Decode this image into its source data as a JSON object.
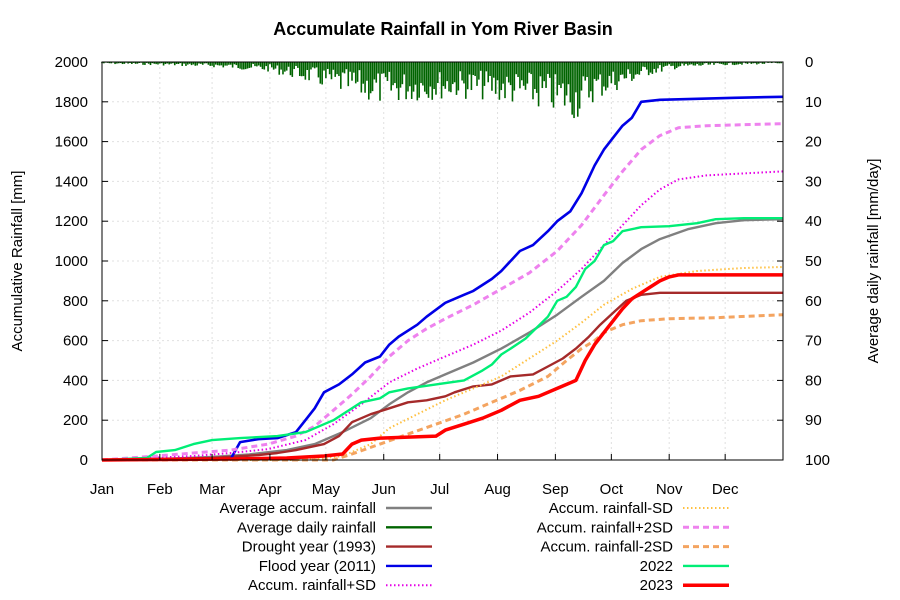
{
  "chart_data": {
    "type": "line",
    "title": "Accumulate Rainfall in Yom River Basin",
    "xlabel": "",
    "ylabel": "Accumulative Rainfall [mm]",
    "y2label": "Average daily rainfall [mm/day]",
    "xlim": [
      1,
      366
    ],
    "ylim": [
      0,
      2000
    ],
    "y2lim": [
      100,
      0
    ],
    "y2_inverted": true,
    "grid": true,
    "legend_position": "bottom, two columns",
    "x_tick_labels": [
      "Jan",
      "Feb",
      "Mar",
      "Apr",
      "May",
      "Jun",
      "Jul",
      "Aug",
      "Sep",
      "Oct",
      "Nov",
      "Dec"
    ],
    "x_tick_days": [
      1,
      32,
      60,
      91,
      121,
      152,
      182,
      213,
      244,
      274,
      305,
      335
    ],
    "y_ticks": [
      0,
      200,
      400,
      600,
      800,
      1000,
      1200,
      1400,
      1600,
      1800,
      2000
    ],
    "y2_ticks": [
      0,
      10,
      20,
      30,
      40,
      50,
      60,
      70,
      80,
      90,
      100
    ],
    "series": [
      {
        "name": "Average accum. rainfall",
        "color": "#808080",
        "style": "solid",
        "axis": "left",
        "points": [
          [
            1,
            0
          ],
          [
            40,
            8
          ],
          [
            60,
            15
          ],
          [
            80,
            28
          ],
          [
            100,
            50
          ],
          [
            115,
            80
          ],
          [
            130,
            140
          ],
          [
            145,
            210
          ],
          [
            155,
            280
          ],
          [
            165,
            340
          ],
          [
            175,
            390
          ],
          [
            185,
            430
          ],
          [
            200,
            490
          ],
          [
            215,
            560
          ],
          [
            230,
            640
          ],
          [
            245,
            730
          ],
          [
            258,
            820
          ],
          [
            270,
            900
          ],
          [
            280,
            990
          ],
          [
            290,
            1060
          ],
          [
            300,
            1110
          ],
          [
            315,
            1160
          ],
          [
            330,
            1190
          ],
          [
            345,
            1205
          ],
          [
            366,
            1210
          ]
        ]
      },
      {
        "name": "Average daily rainfall",
        "color": "#006400",
        "style": "bar",
        "axis": "right",
        "daily_profile": [
          [
            1,
            0.3
          ],
          [
            30,
            0.5
          ],
          [
            60,
            0.8
          ],
          [
            90,
            1.5
          ],
          [
            110,
            3
          ],
          [
            130,
            5
          ],
          [
            150,
            6.5
          ],
          [
            170,
            6
          ],
          [
            190,
            5.5
          ],
          [
            210,
            6
          ],
          [
            230,
            7
          ],
          [
            245,
            8
          ],
          [
            255,
            9
          ],
          [
            265,
            6
          ],
          [
            280,
            4
          ],
          [
            295,
            2
          ],
          [
            310,
            1
          ],
          [
            335,
            0.5
          ],
          [
            366,
            0.3
          ]
        ]
      },
      {
        "name": "Drought year (1993)",
        "color": "#a52a2a",
        "style": "solid",
        "axis": "left",
        "points": [
          [
            1,
            0
          ],
          [
            60,
            10
          ],
          [
            85,
            25
          ],
          [
            95,
            35
          ],
          [
            105,
            50
          ],
          [
            120,
            80
          ],
          [
            128,
            120
          ],
          [
            135,
            190
          ],
          [
            145,
            230
          ],
          [
            155,
            260
          ],
          [
            165,
            290
          ],
          [
            175,
            300
          ],
          [
            185,
            320
          ],
          [
            190,
            340
          ],
          [
            200,
            370
          ],
          [
            210,
            380
          ],
          [
            220,
            420
          ],
          [
            232,
            430
          ],
          [
            240,
            470
          ],
          [
            248,
            510
          ],
          [
            255,
            560
          ],
          [
            262,
            620
          ],
          [
            268,
            680
          ],
          [
            275,
            740
          ],
          [
            282,
            800
          ],
          [
            290,
            830
          ],
          [
            300,
            840
          ],
          [
            366,
            840
          ]
        ]
      },
      {
        "name": "Flood year (2011)",
        "color": "#0000e6",
        "style": "solid",
        "axis": "left",
        "points": [
          [
            1,
            0
          ],
          [
            70,
            5
          ],
          [
            75,
            90
          ],
          [
            85,
            105
          ],
          [
            95,
            110
          ],
          [
            105,
            140
          ],
          [
            110,
            200
          ],
          [
            115,
            260
          ],
          [
            120,
            340
          ],
          [
            128,
            380
          ],
          [
            135,
            430
          ],
          [
            142,
            490
          ],
          [
            150,
            520
          ],
          [
            155,
            580
          ],
          [
            160,
            620
          ],
          [
            170,
            680
          ],
          [
            175,
            720
          ],
          [
            185,
            790
          ],
          [
            195,
            830
          ],
          [
            200,
            850
          ],
          [
            205,
            880
          ],
          [
            210,
            910
          ],
          [
            215,
            950
          ],
          [
            220,
            1000
          ],
          [
            225,
            1050
          ],
          [
            232,
            1080
          ],
          [
            240,
            1150
          ],
          [
            245,
            1200
          ],
          [
            252,
            1250
          ],
          [
            258,
            1340
          ],
          [
            262,
            1420
          ],
          [
            265,
            1480
          ],
          [
            270,
            1560
          ],
          [
            275,
            1620
          ],
          [
            280,
            1680
          ],
          [
            285,
            1720
          ],
          [
            290,
            1800
          ],
          [
            300,
            1810
          ],
          [
            320,
            1815
          ],
          [
            340,
            1820
          ],
          [
            366,
            1825
          ]
        ]
      },
      {
        "name": "Accum. rainfall+SD",
        "color": "#e600e6",
        "style": "dotted",
        "axis": "left",
        "points": [
          [
            1,
            0
          ],
          [
            50,
            20
          ],
          [
            70,
            35
          ],
          [
            90,
            55
          ],
          [
            110,
            100
          ],
          [
            125,
            180
          ],
          [
            140,
            280
          ],
          [
            155,
            390
          ],
          [
            170,
            460
          ],
          [
            185,
            520
          ],
          [
            200,
            580
          ],
          [
            215,
            650
          ],
          [
            230,
            740
          ],
          [
            245,
            850
          ],
          [
            258,
            960
          ],
          [
            270,
            1080
          ],
          [
            280,
            1180
          ],
          [
            290,
            1280
          ],
          [
            300,
            1360
          ],
          [
            310,
            1410
          ],
          [
            325,
            1430
          ],
          [
            345,
            1440
          ],
          [
            366,
            1450
          ]
        ]
      },
      {
        "name": "Accum. rainfall-SD",
        "color": "#ffc040",
        "style": "dotted",
        "axis": "left",
        "points": [
          [
            1,
            0
          ],
          [
            110,
            0
          ],
          [
            130,
            20
          ],
          [
            145,
            80
          ],
          [
            155,
            160
          ],
          [
            170,
            230
          ],
          [
            185,
            300
          ],
          [
            200,
            360
          ],
          [
            215,
            420
          ],
          [
            230,
            510
          ],
          [
            245,
            600
          ],
          [
            258,
            690
          ],
          [
            270,
            780
          ],
          [
            285,
            860
          ],
          [
            300,
            920
          ],
          [
            320,
            950
          ],
          [
            345,
            965
          ],
          [
            366,
            970
          ]
        ]
      },
      {
        "name": "Accum. rainfall+2SD",
        "color": "#ee82ee",
        "style": "dashed",
        "axis": "left",
        "points": [
          [
            1,
            0
          ],
          [
            30,
            20
          ],
          [
            50,
            35
          ],
          [
            70,
            50
          ],
          [
            90,
            80
          ],
          [
            105,
            120
          ],
          [
            115,
            170
          ],
          [
            125,
            250
          ],
          [
            135,
            330
          ],
          [
            145,
            420
          ],
          [
            155,
            520
          ],
          [
            165,
            600
          ],
          [
            175,
            660
          ],
          [
            185,
            710
          ],
          [
            200,
            780
          ],
          [
            215,
            860
          ],
          [
            230,
            940
          ],
          [
            245,
            1050
          ],
          [
            258,
            1180
          ],
          [
            270,
            1330
          ],
          [
            280,
            1450
          ],
          [
            290,
            1560
          ],
          [
            300,
            1630
          ],
          [
            310,
            1670
          ],
          [
            325,
            1680
          ],
          [
            345,
            1685
          ],
          [
            366,
            1690
          ]
        ]
      },
      {
        "name": "Accum. rainfall-2SD",
        "color": "#f4a460",
        "style": "dashed",
        "axis": "left",
        "points": [
          [
            1,
            0
          ],
          [
            125,
            0
          ],
          [
            135,
            30
          ],
          [
            150,
            80
          ],
          [
            165,
            130
          ],
          [
            180,
            180
          ],
          [
            195,
            230
          ],
          [
            210,
            290
          ],
          [
            225,
            350
          ],
          [
            240,
            420
          ],
          [
            250,
            500
          ],
          [
            258,
            560
          ],
          [
            265,
            600
          ],
          [
            270,
            640
          ],
          [
            280,
            680
          ],
          [
            290,
            700
          ],
          [
            305,
            710
          ],
          [
            330,
            715
          ],
          [
            366,
            730
          ]
        ]
      },
      {
        "name": "2022",
        "color": "#00ee76",
        "style": "solid",
        "axis": "left",
        "points": [
          [
            1,
            0
          ],
          [
            25,
            10
          ],
          [
            30,
            40
          ],
          [
            40,
            50
          ],
          [
            50,
            80
          ],
          [
            60,
            100
          ],
          [
            75,
            110
          ],
          [
            95,
            120
          ],
          [
            110,
            140
          ],
          [
            115,
            160
          ],
          [
            125,
            200
          ],
          [
            140,
            290
          ],
          [
            150,
            310
          ],
          [
            155,
            340
          ],
          [
            165,
            360
          ],
          [
            180,
            380
          ],
          [
            195,
            400
          ],
          [
            205,
            450
          ],
          [
            210,
            480
          ],
          [
            215,
            530
          ],
          [
            220,
            560
          ],
          [
            228,
            610
          ],
          [
            240,
            720
          ],
          [
            245,
            800
          ],
          [
            250,
            820
          ],
          [
            255,
            870
          ],
          [
            260,
            960
          ],
          [
            265,
            1000
          ],
          [
            270,
            1080
          ],
          [
            275,
            1100
          ],
          [
            280,
            1150
          ],
          [
            290,
            1170
          ],
          [
            305,
            1175
          ],
          [
            320,
            1190
          ],
          [
            330,
            1210
          ],
          [
            345,
            1215
          ],
          [
            366,
            1215
          ]
        ]
      },
      {
        "name": "2023",
        "color": "#ff0000",
        "style": "solid",
        "axis": "left",
        "points": [
          [
            1,
            0
          ],
          [
            70,
            5
          ],
          [
            100,
            10
          ],
          [
            120,
            20
          ],
          [
            130,
            30
          ],
          [
            135,
            80
          ],
          [
            140,
            100
          ],
          [
            150,
            110
          ],
          [
            165,
            115
          ],
          [
            180,
            120
          ],
          [
            185,
            150
          ],
          [
            195,
            180
          ],
          [
            205,
            210
          ],
          [
            215,
            250
          ],
          [
            225,
            300
          ],
          [
            235,
            320
          ],
          [
            245,
            360
          ],
          [
            250,
            380
          ],
          [
            255,
            400
          ],
          [
            260,
            500
          ],
          [
            265,
            580
          ],
          [
            270,
            640
          ],
          [
            275,
            700
          ],
          [
            280,
            760
          ],
          [
            285,
            810
          ],
          [
            290,
            840
          ],
          [
            295,
            870
          ],
          [
            300,
            900
          ],
          [
            305,
            920
          ],
          [
            310,
            930
          ],
          [
            320,
            930
          ],
          [
            366,
            930
          ]
        ]
      }
    ]
  }
}
